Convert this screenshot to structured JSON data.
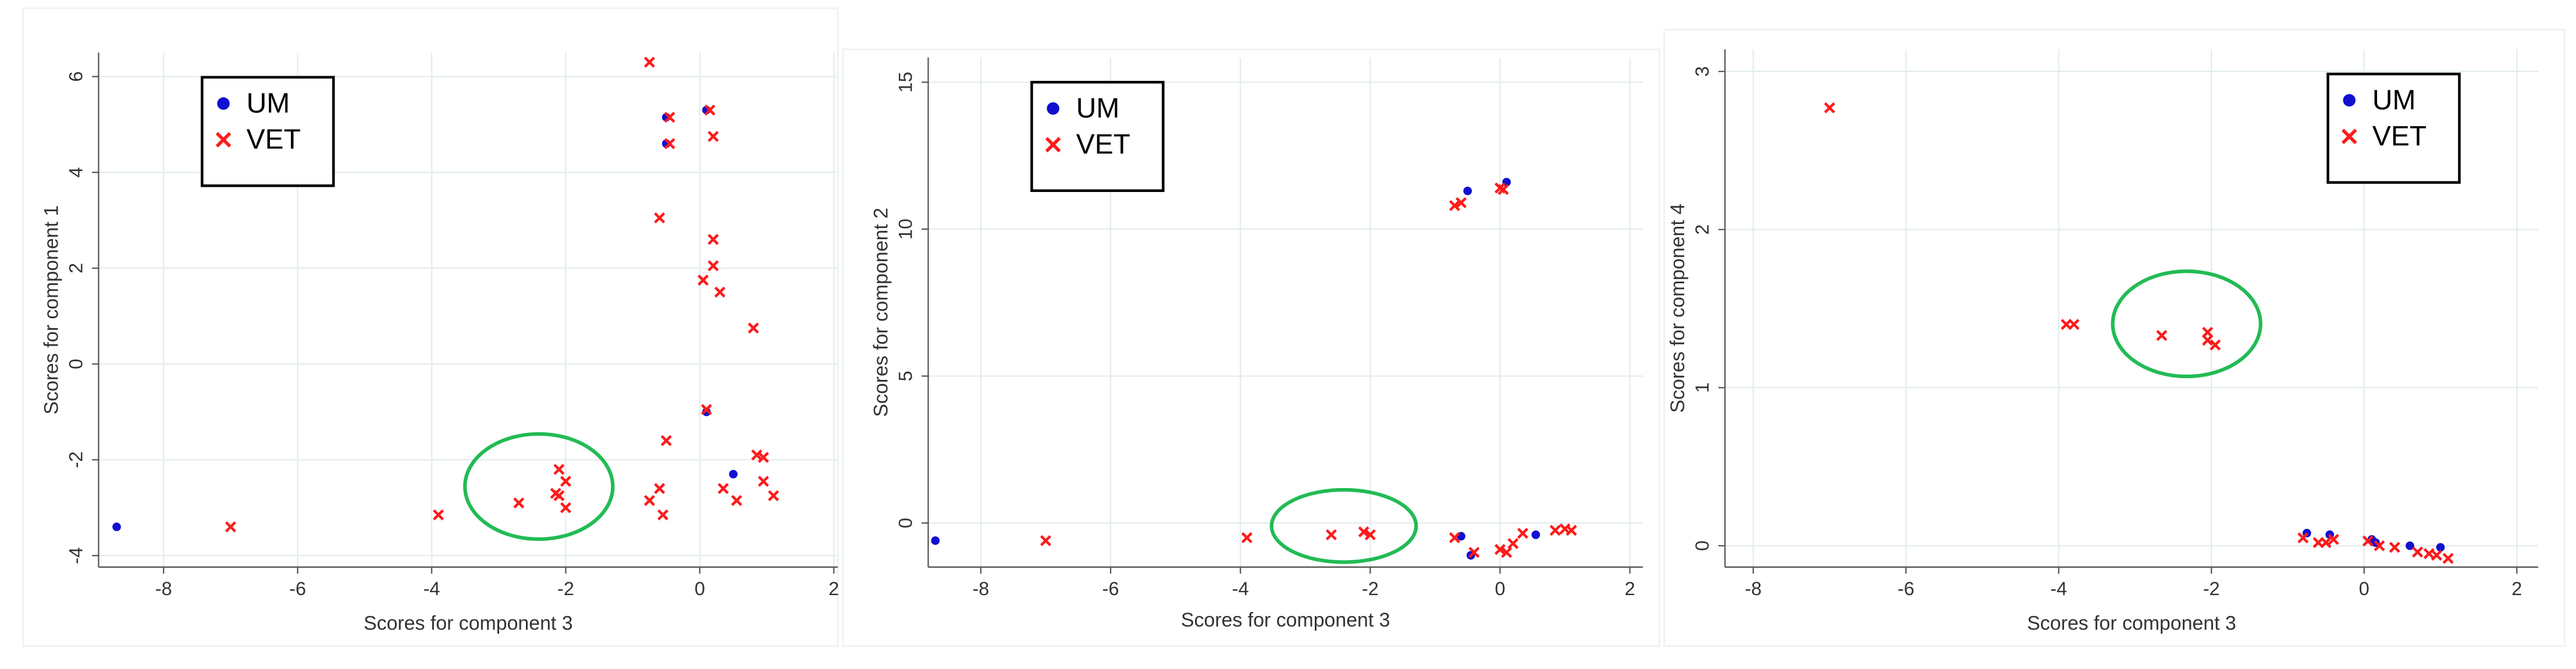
{
  "chart_data": [
    {
      "type": "scatter",
      "xlabel": "Scores for component 3",
      "ylabel": "Scores for component 1",
      "xlim": [
        -8.97,
        2.06
      ],
      "ylim": [
        -4.24,
        6.5
      ],
      "xticks": [
        -8,
        -6,
        -4,
        -2,
        0,
        2
      ],
      "yticks": [
        -4,
        -2,
        0,
        2,
        4,
        6
      ],
      "grid": true,
      "legend": "upper left",
      "series": [
        {
          "name": "UM",
          "color": "#1010d0",
          "marker": "circle",
          "x": [
            -8.7,
            -0.5,
            -0.5,
            0.1,
            0.5,
            0.1
          ],
          "values": [
            -3.4,
            5.15,
            4.6,
            5.3,
            -2.3,
            -1.0
          ]
        },
        {
          "name": "VET",
          "color": "#ff1a1a",
          "marker": "x",
          "x": [
            -7,
            -0.75,
            -0.45,
            0.15,
            -0.45,
            0.2,
            -0.6,
            0.2,
            0.2,
            0.05,
            0.3,
            0.8,
            0.1,
            -0.5,
            0.85,
            0.95,
            0.95,
            1.1,
            0.35,
            0.55,
            -0.6,
            -0.75,
            -0.55,
            -3.9,
            -2.7,
            -2.1,
            -2.0,
            -2.15,
            -2.0,
            -2.1
          ],
          "values": [
            -3.4,
            6.3,
            5.15,
            5.3,
            4.6,
            4.75,
            3.05,
            2.6,
            2.05,
            1.75,
            1.5,
            0.75,
            -0.95,
            -1.6,
            -1.9,
            -1.95,
            -2.45,
            -2.75,
            -2.6,
            -2.85,
            -2.6,
            -2.85,
            -3.15,
            -3.15,
            -2.9,
            -2.2,
            -2.45,
            -2.7,
            -3.0,
            -2.75
          ]
        }
      ]
    },
    {
      "type": "scatter",
      "xlabel": "Scores for component 3",
      "ylabel": "Scores for component 2",
      "xlim": [
        -8.81,
        2.2
      ],
      "ylim": [
        -1.5,
        15.84
      ],
      "xticks": [
        -8,
        -6,
        -4,
        -2,
        0,
        2
      ],
      "yticks": [
        0,
        5,
        10,
        15
      ],
      "grid": true,
      "legend": "upper left",
      "series": [
        {
          "name": "UM",
          "color": "#1010d0",
          "marker": "circle",
          "x": [
            -8.7,
            -0.5,
            0.1,
            -0.45,
            0.55,
            -0.6
          ],
          "values": [
            -0.6,
            11.3,
            11.6,
            -1.1,
            -0.4,
            -0.45
          ]
        },
        {
          "name": "VET",
          "color": "#ff1a1a",
          "marker": "x",
          "x": [
            -7,
            -3.9,
            -2.6,
            -2.1,
            -2.0,
            -0.7,
            -0.6,
            0.0,
            0.05,
            -0.7,
            -0.4,
            0.0,
            0.2,
            0.35,
            0.85,
            1.0,
            1.1,
            0.1
          ],
          "values": [
            -0.6,
            -0.5,
            -0.4,
            -0.3,
            -0.4,
            10.8,
            10.9,
            11.4,
            11.35,
            -0.5,
            -1.0,
            -0.9,
            -0.7,
            -0.35,
            -0.25,
            -0.2,
            -0.25,
            -1.0
          ]
        }
      ]
    },
    {
      "type": "scatter",
      "xlabel": "Scores for component 3",
      "ylabel": "Scores for component 4",
      "xlim": [
        -8.37,
        2.28
      ],
      "ylim": [
        -0.135,
        3.14
      ],
      "xticks": [
        -8,
        -6,
        -4,
        -2,
        0,
        2
      ],
      "yticks": [
        0,
        1,
        2,
        3
      ],
      "grid": true,
      "legend": "upper right",
      "series": [
        {
          "name": "UM",
          "color": "#1010d0",
          "marker": "circle",
          "x": [
            -0.75,
            -0.45,
            0.1,
            0.6,
            1.0,
            0.15
          ],
          "values": [
            0.08,
            0.07,
            0.04,
            0.0,
            -0.01,
            0.02
          ]
        },
        {
          "name": "VET",
          "color": "#ff1a1a",
          "marker": "x",
          "x": [
            -7,
            -3.9,
            -3.8,
            -2.65,
            -2.05,
            -2.05,
            -1.95,
            -0.8,
            -0.6,
            -0.4,
            -0.5,
            0.05,
            0.2,
            0.4,
            0.7,
            0.85,
            0.95,
            1.1
          ],
          "values": [
            2.77,
            1.4,
            1.4,
            1.33,
            1.3,
            1.35,
            1.27,
            0.05,
            0.02,
            0.04,
            0.02,
            0.03,
            0.0,
            -0.01,
            -0.04,
            -0.05,
            -0.06,
            -0.08
          ]
        }
      ]
    }
  ]
}
